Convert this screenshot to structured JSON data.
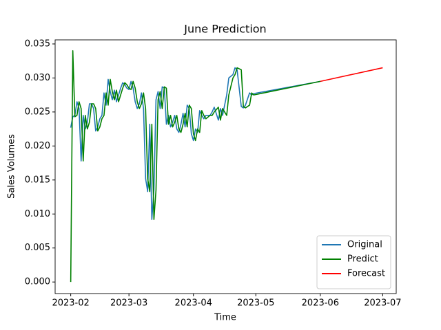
{
  "chart_data": {
    "type": "line",
    "title": "June Prediction",
    "x_label": "Time",
    "y_label": "Sales Volumes",
    "xlim": [
      -7.5,
      156.5
    ],
    "ylim": [
      -0.0017,
      0.0356
    ],
    "xticks": [
      {
        "value": 0,
        "label": "2023-02"
      },
      {
        "value": 28,
        "label": "2023-03"
      },
      {
        "value": 59,
        "label": "2023-04"
      },
      {
        "value": 89,
        "label": "2023-05"
      },
      {
        "value": 120,
        "label": "2023-06"
      },
      {
        "value": 150,
        "label": "2023-07"
      }
    ],
    "yticks": [
      {
        "value": 0,
        "label": "0.000"
      },
      {
        "value": 0.005,
        "label": "0.005"
      },
      {
        "value": 0.01,
        "label": "0.010"
      },
      {
        "value": 0.015,
        "label": "0.015"
      },
      {
        "value": 0.02,
        "label": "0.020"
      },
      {
        "value": 0.025,
        "label": "0.025"
      },
      {
        "value": 0.03,
        "label": "0.030"
      },
      {
        "value": 0.035,
        "label": "0.035"
      }
    ],
    "legend": "lower right",
    "series": [
      {
        "name": "Original",
        "color": "#1f77b4",
        "x": [
          0,
          1,
          2,
          3,
          4,
          5,
          6,
          7,
          8,
          9,
          10,
          11,
          12,
          13,
          14,
          15,
          16,
          17,
          18,
          19,
          20,
          21,
          22,
          23,
          24,
          25,
          26,
          27,
          28,
          29,
          30,
          31,
          32,
          33,
          34,
          35,
          36,
          37,
          38,
          39,
          40,
          41,
          42,
          43,
          44,
          45,
          46,
          47,
          48,
          49,
          50,
          51,
          52,
          53,
          54,
          55,
          56,
          57,
          58,
          59,
          60,
          61,
          62,
          63,
          64,
          65,
          67,
          68,
          69,
          71,
          72,
          73,
          75,
          76,
          78,
          79,
          80,
          82,
          83,
          84,
          86,
          87,
          88,
          120
        ],
        "values": [
          0.0227,
          0.0243,
          0.0245,
          0.0265,
          0.0255,
          0.0178,
          0.0245,
          0.0225,
          0.0235,
          0.0262,
          0.0262,
          0.0255,
          0.0222,
          0.0228,
          0.024,
          0.0245,
          0.0278,
          0.026,
          0.0298,
          0.028,
          0.0268,
          0.0282,
          0.0265,
          0.0275,
          0.0285,
          0.0293,
          0.029,
          0.0285,
          0.0283,
          0.0295,
          0.0285,
          0.0265,
          0.0255,
          0.0262,
          0.0278,
          0.0255,
          0.0152,
          0.0133,
          0.0232,
          0.0092,
          0.0135,
          0.0268,
          0.028,
          0.0255,
          0.0287,
          0.0285,
          0.0232,
          0.0245,
          0.0228,
          0.0235,
          0.0245,
          0.0225,
          0.022,
          0.0232,
          0.0248,
          0.0228,
          0.026,
          0.0255,
          0.0218,
          0.0208,
          0.0225,
          0.022,
          0.0252,
          0.0245,
          0.024,
          0.0245,
          0.0245,
          0.025,
          0.0257,
          0.0238,
          0.0255,
          0.0245,
          0.0275,
          0.03,
          0.0305,
          0.0315,
          0.0312,
          0.0258,
          0.0256,
          0.026,
          0.0278,
          0.0275,
          0.0277,
          0.0295
        ]
      },
      {
        "name": "Predict",
        "color": "#008000",
        "x": [
          0,
          1,
          2,
          3,
          4,
          5,
          6,
          7,
          8,
          9,
          10,
          11,
          12,
          13,
          14,
          15,
          16,
          17,
          18,
          19,
          20,
          21,
          22,
          23,
          24,
          25,
          26,
          27,
          28,
          29,
          30,
          31,
          32,
          33,
          34,
          35,
          36,
          37,
          38,
          39,
          40,
          41,
          42,
          43,
          44,
          45,
          46,
          47,
          48,
          49,
          50,
          51,
          52,
          53,
          54,
          55,
          56,
          57,
          58,
          59,
          60,
          61,
          62,
          63,
          64,
          65,
          67,
          68,
          69,
          71,
          72,
          73,
          75,
          76,
          78,
          79,
          80,
          82,
          83,
          84,
          86,
          87,
          88,
          120
        ],
        "values": [
          0,
          0.034,
          0.0243,
          0.0245,
          0.0265,
          0.0255,
          0.0178,
          0.0245,
          0.0225,
          0.0235,
          0.0262,
          0.0262,
          0.0255,
          0.0222,
          0.0228,
          0.024,
          0.0245,
          0.0278,
          0.026,
          0.0298,
          0.028,
          0.0268,
          0.0282,
          0.0265,
          0.0275,
          0.0285,
          0.0293,
          0.029,
          0.0285,
          0.0283,
          0.0295,
          0.0285,
          0.0265,
          0.0255,
          0.0262,
          0.0278,
          0.0255,
          0.0152,
          0.0133,
          0.0232,
          0.0092,
          0.0135,
          0.0268,
          0.028,
          0.0255,
          0.0287,
          0.0285,
          0.0232,
          0.0245,
          0.0228,
          0.0235,
          0.0245,
          0.0225,
          0.022,
          0.0232,
          0.0248,
          0.0228,
          0.026,
          0.0255,
          0.0218,
          0.0208,
          0.0225,
          0.022,
          0.0252,
          0.0245,
          0.024,
          0.0245,
          0.0245,
          0.025,
          0.0257,
          0.0238,
          0.0255,
          0.0245,
          0.0275,
          0.03,
          0.0305,
          0.0315,
          0.0312,
          0.0258,
          0.0256,
          0.026,
          0.0278,
          0.0275,
          0.0295
        ]
      },
      {
        "name": "Forecast",
        "color": "#ff0000",
        "x": [
          120,
          150
        ],
        "values": [
          0.0295,
          0.0315
        ]
      }
    ]
  }
}
